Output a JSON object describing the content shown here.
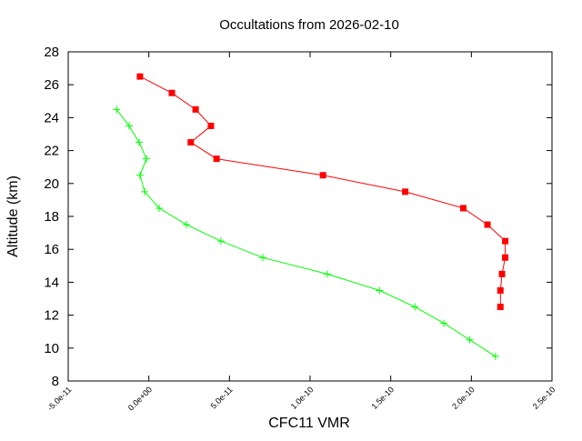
{
  "chart_data": {
    "type": "line",
    "title": "Occultations from 2026-02-10",
    "xlabel": "CFC11 VMR",
    "ylabel": "Altitude (km)",
    "xlim": [
      -5e-11,
      2.5e-10
    ],
    "ylim": [
      8,
      28
    ],
    "xticks": [
      -5e-11,
      0,
      5e-11,
      1e-10,
      1.5e-10,
      2e-10,
      2.5e-10
    ],
    "xtick_labels": [
      "-5.0e-11",
      "0.0e+00",
      "5.0e-11",
      "1.0e-10",
      "1.5e-10",
      "2.0e-10",
      "2.5e-10"
    ],
    "yticks": [
      8,
      10,
      12,
      14,
      16,
      18,
      20,
      22,
      24,
      26,
      28
    ],
    "ytick_labels": [
      "8",
      "10",
      "12",
      "14",
      "16",
      "18",
      "20",
      "22",
      "24",
      "26",
      "28"
    ],
    "grid": false,
    "series": [
      {
        "color": "#ff0000",
        "marker": "square",
        "x": [
          -5.5e-12,
          1.43e-11,
          2.9e-11,
          3.85e-11,
          2.6e-11,
          4.2e-11,
          1.08e-10,
          1.59e-10,
          1.95e-10,
          2.1e-10,
          2.21e-10,
          2.21e-10,
          2.19e-10,
          2.18e-10,
          2.18e-10
        ],
        "y": [
          26.5,
          25.5,
          24.5,
          23.5,
          22.5,
          21.5,
          20.5,
          19.5,
          18.5,
          17.5,
          16.5,
          15.5,
          14.5,
          13.5,
          12.5
        ]
      },
      {
        "color": "#00ff00",
        "marker": "plus",
        "x": [
          -2e-11,
          -1.22e-11,
          -6e-12,
          -1.5e-12,
          -5.5e-12,
          -2.6e-12,
          6.4e-12,
          2.33e-11,
          4.47e-11,
          7.07e-11,
          1.107e-10,
          1.43e-10,
          1.65e-10,
          1.83e-10,
          1.99e-10,
          2.15e-10
        ],
        "y": [
          24.5,
          23.5,
          22.5,
          21.5,
          20.5,
          19.5,
          18.5,
          17.5,
          16.5,
          15.5,
          14.5,
          13.5,
          12.5,
          11.5,
          10.5,
          9.5
        ]
      }
    ]
  }
}
